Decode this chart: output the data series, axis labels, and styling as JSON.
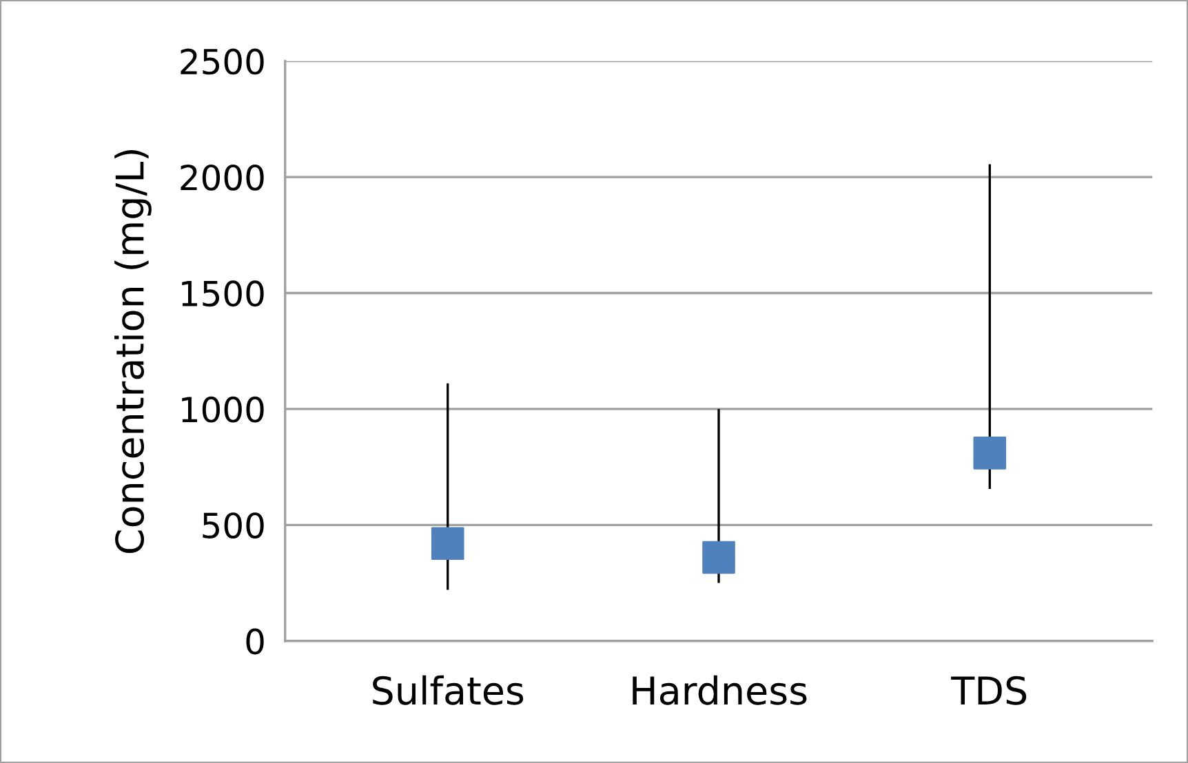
{
  "chart_data": {
    "type": "scatter",
    "ylabel": "Concentration (mg/L)",
    "categories": [
      "Sulfates",
      "Hardness",
      "TDS"
    ],
    "series": [
      {
        "color": "#4f81bd",
        "values": [
          420,
          360,
          810
        ],
        "errors": [
          [
            220,
            1110
          ],
          [
            250,
            1000
          ],
          [
            655,
            2055
          ]
        ]
      }
    ],
    "marker": "square",
    "ylim": [
      0,
      2500
    ],
    "yticks": [
      0,
      500,
      1000,
      1500,
      2000,
      2500
    ],
    "grid": "y",
    "legend": false
  }
}
